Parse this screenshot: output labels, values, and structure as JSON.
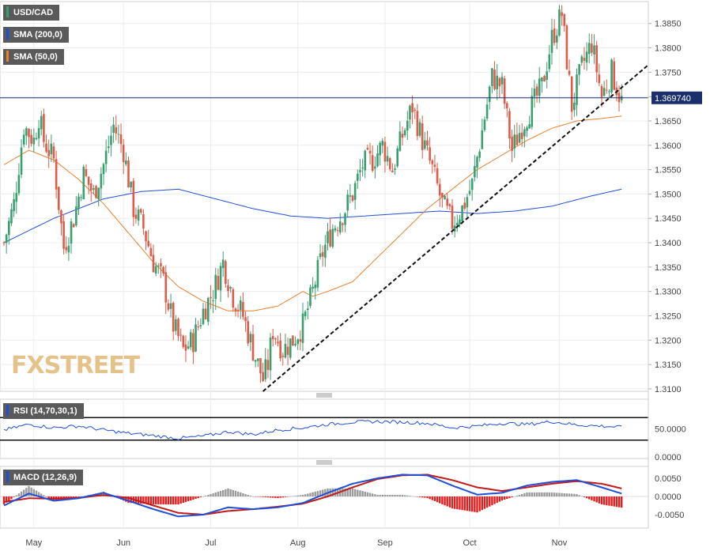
{
  "chart_data": {
    "type": "candlestick",
    "symbol": "USD/CAD",
    "legend": {
      "main": "USD/CAD",
      "sma200": "SMA (200,0)",
      "sma50": "SMA (50,0)",
      "rsi": "RSI (14,70,30,1)",
      "macd": "MACD (12,26,9)"
    },
    "last_price_label": "1.369740",
    "last_price": 1.36974,
    "watermark": "FXSTREET",
    "colors": {
      "up": "#3a9f6f",
      "down": "#e05a48",
      "sma200": "#1f4fd6",
      "sma50": "#e8802e",
      "macd": "#1f4fd6",
      "signal": "#c21a1a",
      "hist_pos": "#9a9a9a",
      "hist_neg": "#e02020",
      "rsi": "#1f4fd6"
    },
    "x_ticks": [
      "May",
      "Jun",
      "Jul",
      "Aug",
      "Sep",
      "Oct",
      "Nov"
    ],
    "price_axis": {
      "ticks": [
        "1.3850",
        "1.3800",
        "1.3750",
        "1.3700",
        "1.3650",
        "1.3600",
        "1.3550",
        "1.3500",
        "1.3450",
        "1.3400",
        "1.3350",
        "1.3300",
        "1.3250",
        "1.3200",
        "1.3150",
        "1.3100"
      ],
      "range": [
        1.3095,
        1.3895
      ]
    },
    "rsi_axis": {
      "ticks": [
        "50.0000",
        "0.0000"
      ],
      "levels": [
        70,
        30
      ]
    },
    "macd_axis": {
      "ticks": [
        "0.0050",
        "0.0000",
        "-0.0050"
      ]
    },
    "price_keypoints": [
      [
        0,
        1.34
      ],
      [
        4,
        1.348
      ],
      [
        8,
        1.364
      ],
      [
        12,
        1.361
      ],
      [
        14,
        1.366
      ],
      [
        16,
        1.361
      ],
      [
        20,
        1.357
      ],
      [
        24,
        1.339
      ],
      [
        28,
        1.345
      ],
      [
        32,
        1.354
      ],
      [
        36,
        1.35
      ],
      [
        40,
        1.356
      ],
      [
        44,
        1.364
      ],
      [
        48,
        1.359
      ],
      [
        52,
        1.347
      ],
      [
        56,
        1.343
      ],
      [
        60,
        1.336
      ],
      [
        64,
        1.332
      ],
      [
        68,
        1.323
      ],
      [
        72,
        1.318
      ],
      [
        76,
        1.32
      ],
      [
        80,
        1.326
      ],
      [
        84,
        1.33
      ],
      [
        88,
        1.336
      ],
      [
        92,
        1.329
      ],
      [
        96,
        1.325
      ],
      [
        100,
        1.318
      ],
      [
        104,
        1.312
      ],
      [
        106,
        1.315
      ],
      [
        108,
        1.322
      ],
      [
        112,
        1.318
      ],
      [
        116,
        1.32
      ],
      [
        120,
        1.323
      ],
      [
        124,
        1.33
      ],
      [
        128,
        1.338
      ],
      [
        132,
        1.343
      ],
      [
        136,
        1.346
      ],
      [
        140,
        1.35
      ],
      [
        144,
        1.356
      ],
      [
        148,
        1.357
      ],
      [
        152,
        1.36
      ],
      [
        156,
        1.355
      ],
      [
        160,
        1.362
      ],
      [
        164,
        1.368
      ],
      [
        168,
        1.361
      ],
      [
        172,
        1.355
      ],
      [
        176,
        1.348
      ],
      [
        180,
        1.344
      ],
      [
        184,
        1.347
      ],
      [
        188,
        1.352
      ],
      [
        192,
        1.363
      ],
      [
        196,
        1.374
      ],
      [
        200,
        1.372
      ],
      [
        204,
        1.359
      ],
      [
        208,
        1.364
      ],
      [
        212,
        1.368
      ],
      [
        216,
        1.372
      ],
      [
        220,
        1.382
      ],
      [
        224,
        1.387
      ],
      [
        228,
        1.368
      ],
      [
        232,
        1.376
      ],
      [
        236,
        1.381
      ],
      [
        240,
        1.37
      ],
      [
        244,
        1.375
      ],
      [
        248,
        1.369
      ]
    ],
    "sma50_keypoints": [
      [
        0,
        1.356
      ],
      [
        10,
        1.359
      ],
      [
        20,
        1.357
      ],
      [
        30,
        1.353
      ],
      [
        40,
        1.348
      ],
      [
        50,
        1.342
      ],
      [
        60,
        1.336
      ],
      [
        70,
        1.331
      ],
      [
        80,
        1.328
      ],
      [
        90,
        1.326
      ],
      [
        100,
        1.326
      ],
      [
        110,
        1.327
      ],
      [
        120,
        1.33
      ],
      [
        124,
        1.329
      ],
      [
        130,
        1.33
      ],
      [
        140,
        1.332
      ],
      [
        150,
        1.337
      ],
      [
        160,
        1.342
      ],
      [
        170,
        1.347
      ],
      [
        180,
        1.351
      ],
      [
        190,
        1.355
      ],
      [
        200,
        1.358
      ],
      [
        210,
        1.361
      ],
      [
        220,
        1.3635
      ],
      [
        230,
        1.365
      ],
      [
        240,
        1.3655
      ],
      [
        248,
        1.366
      ]
    ],
    "sma200_keypoints": [
      [
        0,
        1.34
      ],
      [
        20,
        1.345
      ],
      [
        40,
        1.349
      ],
      [
        55,
        1.3505
      ],
      [
        70,
        1.351
      ],
      [
        85,
        1.349
      ],
      [
        100,
        1.347
      ],
      [
        115,
        1.3455
      ],
      [
        130,
        1.345
      ],
      [
        145,
        1.3455
      ],
      [
        160,
        1.346
      ],
      [
        175,
        1.3465
      ],
      [
        190,
        1.346
      ],
      [
        205,
        1.3465
      ],
      [
        220,
        1.3475
      ],
      [
        235,
        1.3495
      ],
      [
        248,
        1.351
      ]
    ],
    "rsi_keypoints": [
      [
        0,
        48
      ],
      [
        10,
        58
      ],
      [
        20,
        52
      ],
      [
        30,
        55
      ],
      [
        40,
        48
      ],
      [
        50,
        42
      ],
      [
        60,
        38
      ],
      [
        70,
        33
      ],
      [
        80,
        37
      ],
      [
        90,
        45
      ],
      [
        100,
        40
      ],
      [
        110,
        48
      ],
      [
        120,
        52
      ],
      [
        130,
        58
      ],
      [
        140,
        62
      ],
      [
        150,
        63
      ],
      [
        160,
        62
      ],
      [
        170,
        60
      ],
      [
        180,
        52
      ],
      [
        190,
        55
      ],
      [
        200,
        60
      ],
      [
        210,
        58
      ],
      [
        220,
        63
      ],
      [
        230,
        57
      ],
      [
        240,
        55
      ],
      [
        248,
        53
      ]
    ],
    "macd_keypoints": [
      [
        0,
        -0.0025
      ],
      [
        10,
        0.0008
      ],
      [
        20,
        -0.0012
      ],
      [
        30,
        -0.0005
      ],
      [
        40,
        0.001
      ],
      [
        50,
        -0.0012
      ],
      [
        60,
        -0.0035
      ],
      [
        70,
        -0.0055
      ],
      [
        80,
        -0.005
      ],
      [
        90,
        -0.003
      ],
      [
        100,
        -0.0035
      ],
      [
        110,
        -0.003
      ],
      [
        120,
        -0.0018
      ],
      [
        130,
        0.001
      ],
      [
        140,
        0.0035
      ],
      [
        150,
        0.005
      ],
      [
        160,
        0.006
      ],
      [
        170,
        0.0058
      ],
      [
        180,
        0.003
      ],
      [
        190,
        0.0005
      ],
      [
        200,
        0.001
      ],
      [
        210,
        0.003
      ],
      [
        220,
        0.004
      ],
      [
        230,
        0.0045
      ],
      [
        240,
        0.0025
      ],
      [
        248,
        0.0008
      ]
    ],
    "signal_keypoints": [
      [
        0,
        -0.0015
      ],
      [
        10,
        -0.0005
      ],
      [
        20,
        -0.0006
      ],
      [
        30,
        -0.0004
      ],
      [
        40,
        0.0004
      ],
      [
        50,
        -0.0004
      ],
      [
        60,
        -0.0025
      ],
      [
        70,
        -0.0045
      ],
      [
        80,
        -0.005
      ],
      [
        90,
        -0.004
      ],
      [
        100,
        -0.0035
      ],
      [
        110,
        -0.0028
      ],
      [
        120,
        -0.002
      ],
      [
        130,
        0.0
      ],
      [
        140,
        0.0025
      ],
      [
        150,
        0.0048
      ],
      [
        160,
        0.0058
      ],
      [
        170,
        0.006
      ],
      [
        180,
        0.0045
      ],
      [
        190,
        0.0025
      ],
      [
        200,
        0.0015
      ],
      [
        210,
        0.0025
      ],
      [
        220,
        0.0035
      ],
      [
        230,
        0.0042
      ],
      [
        240,
        0.0035
      ],
      [
        248,
        0.0022
      ]
    ]
  }
}
